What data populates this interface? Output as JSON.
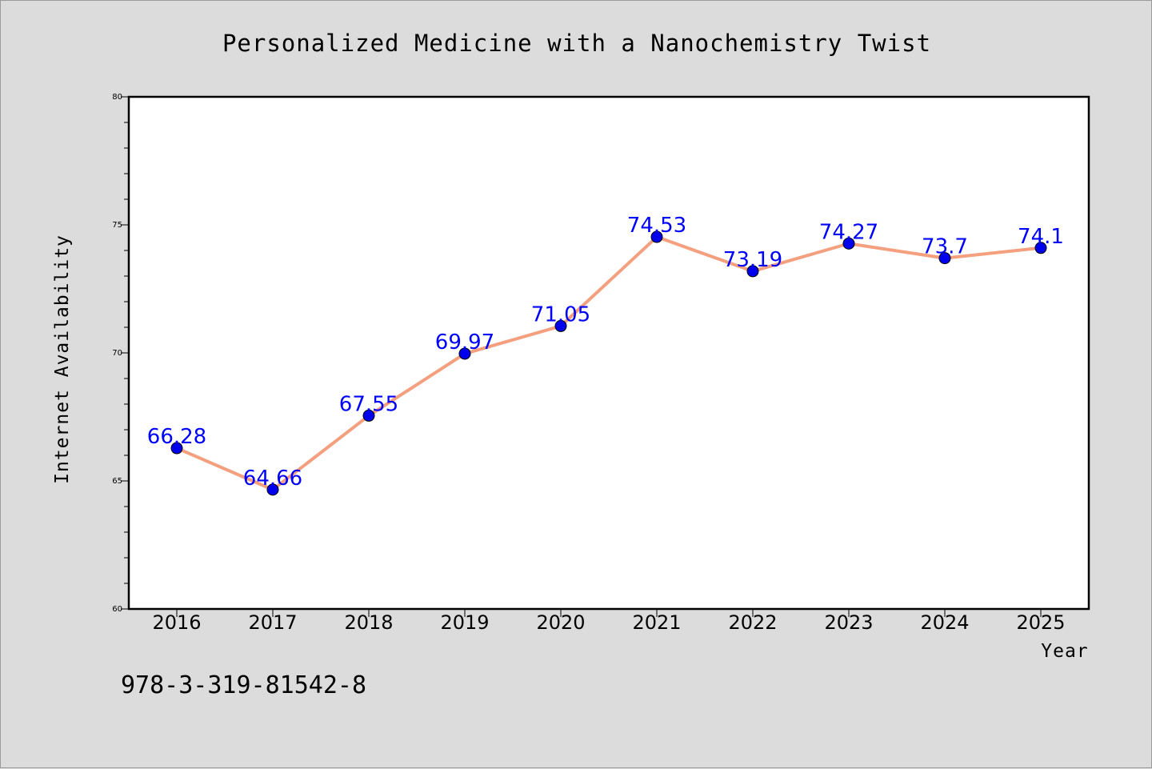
{
  "chart_data": {
    "type": "line",
    "title": "Personalized Medicine with a Nanochemistry Twist",
    "xlabel": "Year",
    "ylabel": "Internet Availability",
    "categories": [
      "2016",
      "2017",
      "2018",
      "2019",
      "2020",
      "2021",
      "2022",
      "2023",
      "2024",
      "2025"
    ],
    "values": [
      66.28,
      64.66,
      67.55,
      69.97,
      71.05,
      74.53,
      73.19,
      74.27,
      73.7,
      74.1
    ],
    "data_labels": [
      "66.28",
      "64.66",
      "67.55",
      "69.97",
      "71.05",
      "74.53",
      "73.19",
      "74.27",
      "73.7",
      "74.1"
    ],
    "ylim": [
      60,
      80
    ],
    "yticks": [
      "60",
      "65",
      "70",
      "75",
      "80"
    ],
    "grid": false,
    "line_color": "#f4a07f",
    "marker_color": "#0000ee",
    "label_color": "#0000ff"
  },
  "footer": {
    "isbn": "978-3-319-81542-8"
  }
}
